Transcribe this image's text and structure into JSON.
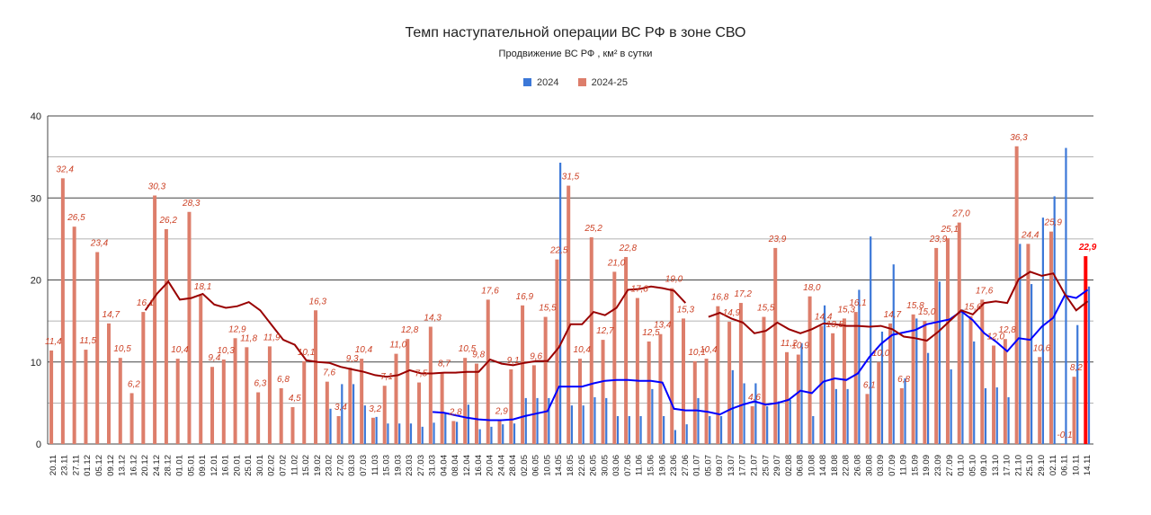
{
  "chart_data": {
    "type": "bar",
    "title": "Темп наступательной операции ВС РФ в зоне СВО",
    "subtitle": "Продвижение ВС РФ , км² в сутки",
    "ylim": [
      0,
      40
    ],
    "yticks": [
      "0",
      "10",
      "20",
      "30",
      "40"
    ],
    "grid": true,
    "legend_position": "top",
    "colors": {
      "bar_2024": "#3c78d8",
      "bar_2024_25": "#dd7e6b",
      "trend_2024": "#0000ff",
      "trend_2024_25": "#990000",
      "highlight": "#ff0000",
      "label": "#cc4125"
    },
    "legend": [
      {
        "name": "2024",
        "color": "#3c78d8"
      },
      {
        "name": "2024-25",
        "color": "#dd7e6b"
      }
    ],
    "categories": [
      "20.11",
      "23.11",
      "27.11",
      "01.12",
      "05.12",
      "09.12",
      "13.12",
      "16.12",
      "20.12",
      "24.12",
      "28.12",
      "01.01",
      "05.01",
      "09.01",
      "12.01",
      "16.01",
      "20.01",
      "25.01",
      "30.01",
      "02.02",
      "07.02",
      "11.02",
      "15.02",
      "19.02",
      "23.02",
      "27.02",
      "03.03",
      "07.03",
      "11.03",
      "15.03",
      "19.03",
      "23.03",
      "27.03",
      "31.03",
      "04.04",
      "08.04",
      "12.04",
      "16.04",
      "20.04",
      "24.04",
      "28.04",
      "02.05",
      "06.05",
      "10.05",
      "14.05",
      "18.05",
      "22.05",
      "26.05",
      "30.05",
      "03.06",
      "07.06",
      "11.06",
      "15.06",
      "19.06",
      "23.06",
      "27.06",
      "01.07",
      "05.07",
      "09.07",
      "13.07",
      "17.07",
      "21.07",
      "25.07",
      "29.07",
      "02.08",
      "06.08",
      "10.08",
      "14.08",
      "18.08",
      "22.08",
      "26.08",
      "30.08",
      "03.09",
      "07.09",
      "11.09",
      "15.09",
      "19.09",
      "23.09",
      "27.09",
      "01.10",
      "05.10",
      "09.10",
      "13.10",
      "17.10",
      "21.10",
      "25.10",
      "29.10",
      "02.11",
      "06.11",
      "10.11",
      "14.11"
    ],
    "series": [
      {
        "name": "2024-25",
        "labels": [
          "11,4",
          "32,4",
          "26,5",
          "11,5",
          "23,4",
          "14,7",
          "10,5",
          "6,2",
          "16,1",
          "30,3",
          "26,2",
          "10,4",
          "28,3",
          "18,1",
          "9,4",
          "10,3",
          "12,9",
          "11,8",
          "6,3",
          "11,9",
          "6,8",
          "4,5",
          "10,1",
          "16,3",
          "7,6",
          "3,4",
          "9,3",
          "10,4",
          "3,2",
          "7,1",
          "11,0",
          "12,8",
          "7,5",
          "14,3",
          "8,7",
          "2,8",
          "10,5",
          "9,8",
          "17,6",
          "2,9",
          "9,1",
          "16,9",
          "9,6",
          "15,5",
          "22,5",
          "31,5",
          "10,4",
          "25,2",
          "12,7",
          "21,0",
          "22,8",
          "17,8",
          "12,5",
          "13,4",
          "19,0",
          "15,3",
          "10,1",
          "10,4",
          "16,8",
          "14,9",
          "17,2",
          "4,6",
          "15,5",
          "23,9",
          "11,2",
          "10,9",
          "18,0",
          "14,4",
          "13,5",
          "15,3",
          "16,1",
          "6,1",
          "10,0",
          "14,7",
          "6,8",
          "15,8",
          "15,0",
          "23,9",
          "25,1",
          "27,0",
          "15,6",
          "17,6",
          "12,0",
          "12,8",
          "36,3",
          "24,4",
          "10,6",
          "25,9",
          "-0,1",
          "8,2",
          "22,9"
        ],
        "values": [
          11.4,
          32.4,
          26.5,
          11.5,
          23.4,
          14.7,
          10.5,
          6.2,
          16.1,
          30.3,
          26.2,
          10.4,
          28.3,
          18.1,
          9.4,
          10.3,
          12.9,
          11.8,
          6.3,
          11.9,
          6.8,
          4.5,
          10.1,
          16.3,
          7.6,
          3.4,
          9.3,
          10.4,
          3.2,
          7.1,
          11.0,
          12.8,
          7.5,
          14.3,
          8.7,
          2.8,
          10.5,
          9.8,
          17.6,
          2.9,
          9.1,
          16.9,
          9.6,
          15.5,
          22.5,
          31.5,
          10.4,
          25.2,
          12.7,
          21.0,
          22.8,
          17.8,
          12.5,
          13.4,
          19.0,
          15.3,
          10.1,
          10.4,
          16.8,
          14.9,
          17.2,
          4.6,
          15.5,
          23.9,
          11.2,
          10.9,
          18.0,
          14.4,
          13.5,
          15.3,
          16.1,
          6.1,
          10.0,
          14.7,
          6.8,
          15.8,
          15.0,
          23.9,
          25.1,
          27.0,
          15.6,
          17.6,
          12.0,
          12.8,
          36.3,
          24.4,
          10.6,
          25.9,
          -0.1,
          8.2,
          22.9
        ]
      },
      {
        "name": "2024",
        "values": [
          null,
          null,
          null,
          null,
          null,
          null,
          null,
          null,
          null,
          null,
          null,
          null,
          null,
          null,
          null,
          null,
          null,
          null,
          null,
          null,
          null,
          null,
          null,
          null,
          4.3,
          7.3,
          7.3,
          4.7,
          3.3,
          2.5,
          2.5,
          2.5,
          2.1,
          2.6,
          3.8,
          2.7,
          4.8,
          1.8,
          2.1,
          2.4,
          2.5,
          5.6,
          5.6,
          5.6,
          34.3,
          4.7,
          4.7,
          5.7,
          5.6,
          3.4,
          3.4,
          3.4,
          6.7,
          3.4,
          1.7,
          2.4,
          5.6,
          3.4,
          3.4,
          9.0,
          7.4,
          7.4,
          4.6,
          5.2,
          5.4,
          12.3,
          3.4,
          16.9,
          6.7,
          6.7,
          18.8,
          25.3,
          13.7,
          21.9,
          8.0,
          15.3,
          11.1,
          19.8,
          9.1,
          16.4,
          12.5,
          6.8,
          6.9,
          5.7,
          24.4,
          19.5,
          27.6,
          30.2,
          36.1,
          14.5,
          19.2
        ]
      },
      {
        "name": "2024 trend",
        "values": [
          null,
          null,
          null,
          null,
          null,
          null,
          null,
          null,
          null,
          null,
          null,
          null,
          null,
          null,
          null,
          null,
          null,
          null,
          null,
          null,
          null,
          null,
          null,
          null,
          null,
          null,
          null,
          null,
          null,
          null,
          null,
          null,
          null,
          3.9,
          3.8,
          3.5,
          3.2,
          3.0,
          2.9,
          2.9,
          3.0,
          3.4,
          3.7,
          4.0,
          7.0,
          7.0,
          7.0,
          7.4,
          7.7,
          7.8,
          7.8,
          7.7,
          7.7,
          7.5,
          4.3,
          4.1,
          4.1,
          3.9,
          3.6,
          4.3,
          4.8,
          5.2,
          4.8,
          5.0,
          5.4,
          6.5,
          6.2,
          7.6,
          8.0,
          7.8,
          8.6,
          10.6,
          12.2,
          13.3,
          13.6,
          13.9,
          14.6,
          14.9,
          15.2,
          16.2,
          15.1,
          13.5,
          12.5,
          11.3,
          12.9,
          12.7,
          14.3,
          15.4,
          18.1,
          17.8,
          18.8
        ]
      },
      {
        "name": "2024-25 trend",
        "values": [
          null,
          null,
          null,
          null,
          null,
          null,
          null,
          null,
          null,
          null,
          null,
          null,
          null,
          null,
          null,
          null,
          null,
          null,
          null,
          null,
          null,
          null,
          null,
          null,
          null,
          null,
          null,
          null,
          null,
          null,
          null,
          null,
          null,
          null,
          null,
          null,
          null,
          null,
          null,
          null,
          null,
          null,
          null,
          null,
          null,
          null,
          null,
          null,
          null,
          null,
          null,
          null,
          null,
          null,
          null,
          null,
          null,
          null,
          null,
          null,
          null,
          null,
          null,
          null,
          null,
          null,
          null,
          null,
          null,
          null,
          null,
          null,
          null,
          null,
          null,
          null,
          null,
          null,
          null,
          null,
          null,
          null,
          null,
          null,
          null,
          null,
          null,
          null,
          null,
          null,
          null
        ]
      },
      {
        "name": "2024-25 trend (dark)",
        "values": [
          null,
          null,
          null,
          null,
          null,
          null,
          null,
          null,
          16.3,
          18.3,
          19.8,
          17.6,
          17.8,
          18.3,
          17.0,
          16.6,
          16.8,
          17.3,
          16.3,
          14.5,
          12.7,
          12.1,
          10.2,
          10.0,
          9.9,
          9.4,
          9.1,
          8.8,
          8.4,
          8.2,
          8.4,
          9.0,
          8.6,
          8.6,
          8.7,
          8.7,
          8.8,
          8.8,
          10.3,
          9.8,
          9.6,
          9.9,
          10.1,
          10.1,
          11.8,
          14.6,
          14.6,
          16.1,
          15.7,
          16.6,
          18.8,
          18.9,
          19.2,
          19.0,
          18.7,
          17.2,
          null,
          15.5,
          16.0,
          15.3,
          14.8,
          13.5,
          13.8,
          14.8,
          14.0,
          13.5,
          14.0,
          14.7,
          14.6,
          14.4,
          14.4,
          14.3,
          14.4,
          14.0,
          13.1,
          12.9,
          12.6,
          13.7,
          15.0,
          16.3,
          15.8,
          17.2,
          17.4,
          17.2,
          20.1,
          21.0,
          20.5,
          20.8,
          18.3,
          16.3,
          17.4
        ]
      }
    ],
    "highlight_index": 90
  }
}
